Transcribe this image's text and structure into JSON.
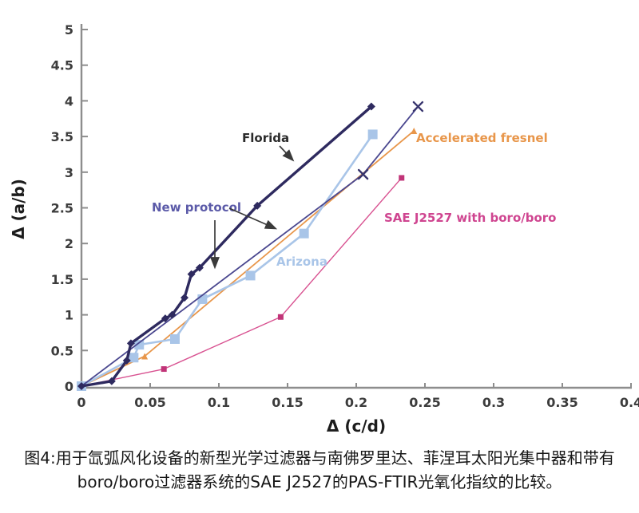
{
  "figure": {
    "caption_line1": "图4:用于氙弧风化设备的新型光学过滤器与南佛罗里达、菲涅耳太阳光集中器和带有",
    "caption_line2": "boro/boro过滤器系统的SAE J2527的PAS-FTIR光氧化指纹的比较。"
  },
  "chart_data": {
    "type": "line",
    "title": "",
    "xlabel": "Δ (c/d)",
    "ylabel": "Δ (a/b)",
    "xlim": [
      0,
      0.4
    ],
    "ylim": [
      0,
      5
    ],
    "grid": false,
    "legend": "inline-annotations",
    "xticks": [
      {
        "v": 0,
        "label": "0"
      },
      {
        "v": 0.05,
        "label": "0.05"
      },
      {
        "v": 0.1,
        "label": "0.1"
      },
      {
        "v": 0.15,
        "label": "0.15"
      },
      {
        "v": 0.2,
        "label": "0.2"
      },
      {
        "v": 0.25,
        "label": "0.25"
      },
      {
        "v": 0.3,
        "label": "0.3"
      },
      {
        "v": 0.35,
        "label": "0.35"
      },
      {
        "v": 0.4,
        "label": "0.4"
      }
    ],
    "yticks": [
      {
        "v": 0,
        "label": "0"
      },
      {
        "v": 0.5,
        "label": "0.5"
      },
      {
        "v": 1,
        "label": "1"
      },
      {
        "v": 1.5,
        "label": "1.5"
      },
      {
        "v": 2,
        "label": "2"
      },
      {
        "v": 2.5,
        "label": "2.5"
      },
      {
        "v": 3,
        "label": "3"
      },
      {
        "v": 3.5,
        "label": "3.5"
      },
      {
        "v": 4,
        "label": "4"
      },
      {
        "v": 4.5,
        "label": "4.5"
      },
      {
        "v": 5,
        "label": "5"
      }
    ],
    "series": [
      {
        "name": "SAE J2527 with boro/boro",
        "color": "#d85190",
        "marker": "square",
        "marker_color": "#c13478",
        "marker_size": 7,
        "line_width": 1.4,
        "marker_from": 1,
        "points": [
          [
            0,
            0
          ],
          [
            0.06,
            0.24
          ],
          [
            0.145,
            0.97
          ],
          [
            0.233,
            2.92
          ]
        ]
      },
      {
        "name": "Accelerated fresnel",
        "color": "#e8964a",
        "marker": "triangle",
        "marker_size": 8,
        "line_width": 1.8,
        "marker_from": 0,
        "points": [
          [
            0,
            0
          ],
          [
            0.046,
            0.42
          ],
          [
            0.242,
            3.58
          ]
        ]
      },
      {
        "name": "Arizona",
        "color": "#a9c5e8",
        "marker": "square",
        "marker_size": 12,
        "line_width": 2.6,
        "marker_from": 0,
        "points": [
          [
            0,
            0
          ],
          [
            0.038,
            0.4
          ],
          [
            0.042,
            0.58
          ],
          [
            0.068,
            0.66
          ],
          [
            0.088,
            1.22
          ],
          [
            0.123,
            1.55
          ],
          [
            0.162,
            2.14
          ],
          [
            0.212,
            3.53
          ]
        ]
      },
      {
        "name": "New protocol",
        "color": "#4a478f",
        "marker": "x",
        "marker_color": "#38356e",
        "marker_size": 11,
        "line_width": 1.8,
        "marker_from": 1,
        "points": [
          [
            0,
            0
          ],
          [
            0.205,
            2.97
          ],
          [
            0.245,
            3.92
          ]
        ]
      },
      {
        "name": "Florida",
        "color": "#2e2a5f",
        "marker": "diamond",
        "marker_size": 10,
        "line_width": 3.4,
        "marker_from": 0,
        "points": [
          [
            0,
            0
          ],
          [
            0.022,
            0.07
          ],
          [
            0.033,
            0.36
          ],
          [
            0.036,
            0.6
          ],
          [
            0.061,
            0.95
          ],
          [
            0.066,
            1.0
          ],
          [
            0.075,
            1.24
          ],
          [
            0.08,
            1.57
          ],
          [
            0.086,
            1.66
          ],
          [
            0.128,
            2.53
          ],
          [
            0.211,
            3.92
          ]
        ]
      }
    ],
    "annotations": [
      {
        "text": "Florida",
        "color": "#2b2b2b"
      },
      {
        "text": "New protocol",
        "color": "#5b5aa8"
      },
      {
        "text": "Accelerated fresnel",
        "color": "#e8964a"
      },
      {
        "text": "Arizona",
        "color": "#a9c5e8"
      },
      {
        "text": "SAE J2527 with boro/boro",
        "color": "#cf4590"
      }
    ]
  }
}
